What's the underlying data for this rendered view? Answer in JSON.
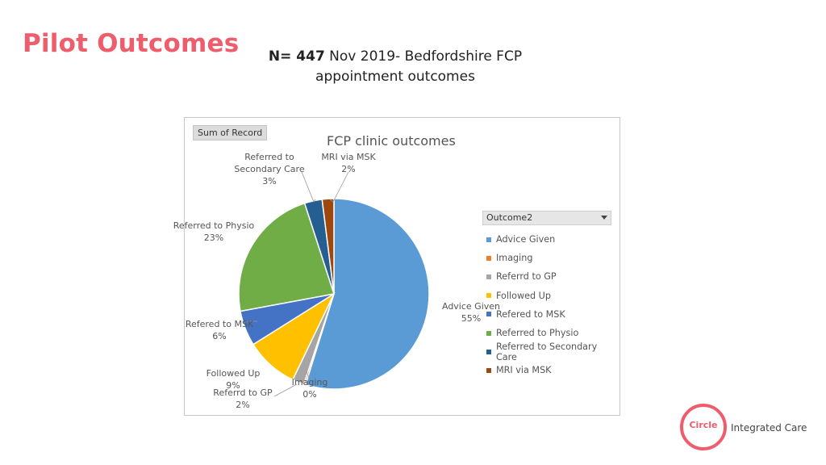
{
  "slide": {
    "title": "Pilot Outcomes",
    "subtitle_bold": "N= 447",
    "subtitle_rest": " Nov 2019- Bedfordshire FCP",
    "subtitle_line2": "appointment outcomes"
  },
  "field_button": "Sum of Record",
  "legend_header": "Outcome2",
  "logo": {
    "wordmark": "Circle",
    "tagline": "Integrated Care",
    "color": "#ee5d6b"
  },
  "chart_data": {
    "type": "pie",
    "title": "FCP clinic outcomes",
    "legend_position": "right",
    "slices": [
      {
        "label": "Advice Given",
        "value": 55,
        "data_label": "Advice Given\n55%",
        "color": "#5b9bd5"
      },
      {
        "label": "Imaging",
        "value": 0.3,
        "data_label": "Imaging\n0%",
        "color": "#ed7d31"
      },
      {
        "label": "Referrd to GP",
        "value": 2,
        "data_label": "Referrd to GP\n2%",
        "color": "#a5a5a5"
      },
      {
        "label": "Followed Up",
        "value": 9,
        "data_label": "Followed Up\n9%",
        "color": "#ffc000"
      },
      {
        "label": "Refered to MSK",
        "value": 6,
        "data_label": "Refered to MSK\n6%",
        "color": "#4472c4"
      },
      {
        "label": "Referred to Physio",
        "value": 23,
        "data_label": "Referred to Physio\n23%",
        "color": "#70ad47"
      },
      {
        "label": "Referred to Secondary Care",
        "value": 3,
        "data_label": "Referred to\nSecondary Care\n3%",
        "color": "#255e91"
      },
      {
        "label": "MRI via MSK",
        "value": 2,
        "data_label": "MRI via MSK\n2%",
        "color": "#9e480e"
      }
    ]
  }
}
